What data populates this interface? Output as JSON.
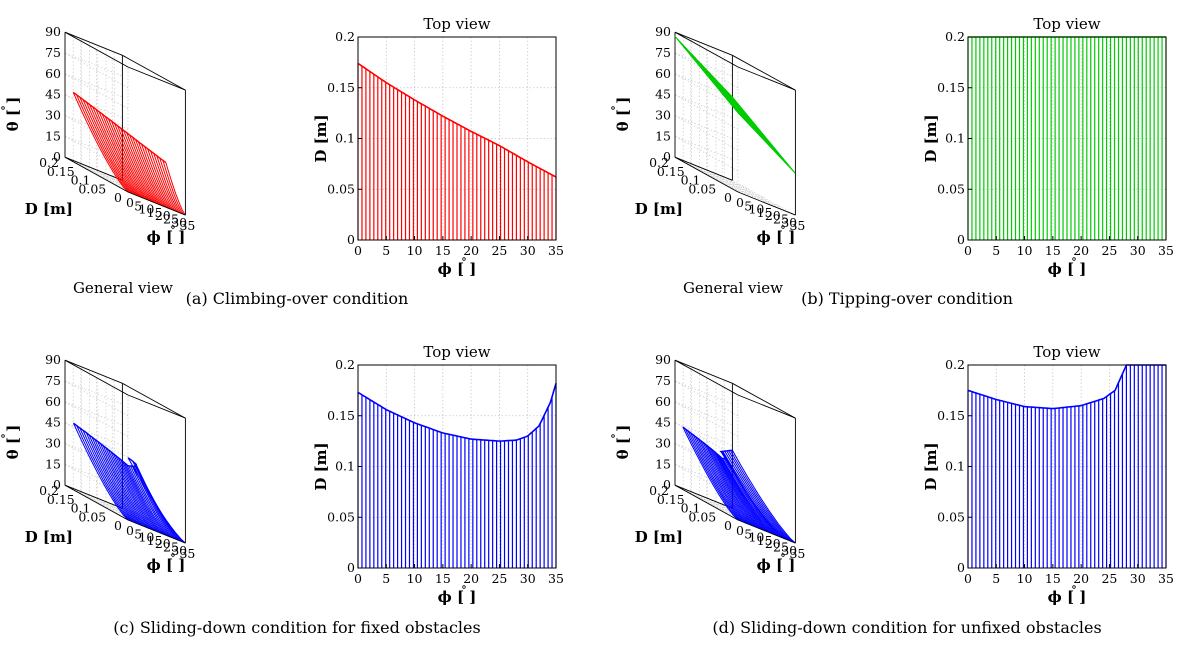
{
  "panels": [
    {
      "id": "a",
      "caption": "(a)  Climbing-over condition",
      "color": "#ff0000",
      "general_title": "General view",
      "top_title": "Top view"
    },
    {
      "id": "b",
      "caption": "(b)  Tipping-over condition",
      "color": "#00cc00",
      "general_title": "General view",
      "top_title": "Top view"
    },
    {
      "id": "c",
      "caption": "(c)  Sliding-down condition for fixed obstacles",
      "color": "#0000ff",
      "general_title": "General view",
      "top_title": "Top view"
    },
    {
      "id": "d",
      "caption": "(d)  Sliding-down condition for unfixed obstacles",
      "color": "#0000ff",
      "general_title": "General view",
      "top_title": "Top view"
    }
  ],
  "axes_text": {
    "phi_label": "ϕ [ ]",
    "phi_deg": "∘",
    "D_label": "D [m]",
    "theta_label": "θ [ ]",
    "theta_deg": "∘"
  },
  "chart_data": [
    {
      "type": "line",
      "panel": "a",
      "view": "top",
      "title": "Top view",
      "xlabel": "ϕ [ ]",
      "ylabel": "D [m]",
      "xlim": [
        0,
        35
      ],
      "ylim": [
        0,
        0.2
      ],
      "xticks": [
        0,
        5,
        10,
        15,
        20,
        25,
        30,
        35
      ],
      "yticks": [
        0,
        0.05,
        0.1,
        0.15,
        0.2
      ],
      "ytick_labels": [
        "0",
        "0.05",
        "0.1",
        "0.15",
        "0.2"
      ],
      "fill_style": "vertical-lines",
      "x": [
        0,
        5,
        10,
        15,
        20,
        25,
        30,
        35
      ],
      "y": [
        0.174,
        0.155,
        0.138,
        0.122,
        0.107,
        0.093,
        0.077,
        0.062
      ]
    },
    {
      "type": "line",
      "panel": "b",
      "view": "top",
      "title": "Top view",
      "xlabel": "ϕ [ ]",
      "ylabel": "D [m]",
      "xlim": [
        0,
        35
      ],
      "ylim": [
        0,
        0.2
      ],
      "xticks": [
        0,
        5,
        10,
        15,
        20,
        25,
        30,
        35
      ],
      "yticks": [
        0,
        0.05,
        0.1,
        0.15,
        0.2
      ],
      "ytick_labels": [
        "0",
        "0.05",
        "0.1",
        "0.15",
        "0.2"
      ],
      "fill_style": "vertical-lines",
      "x": [
        0,
        5,
        10,
        15,
        20,
        25,
        30,
        35
      ],
      "y": [
        0.2,
        0.2,
        0.2,
        0.2,
        0.2,
        0.2,
        0.2,
        0.2
      ]
    },
    {
      "type": "line",
      "panel": "c",
      "view": "top",
      "title": "Top view",
      "xlabel": "ϕ [ ]",
      "ylabel": "D [m]",
      "xlim": [
        0,
        35
      ],
      "ylim": [
        0,
        0.2
      ],
      "xticks": [
        0,
        5,
        10,
        15,
        20,
        25,
        30,
        35
      ],
      "yticks": [
        0,
        0.05,
        0.1,
        0.15,
        0.2
      ],
      "ytick_labels": [
        "0",
        "0.05",
        "0.1",
        "0.15",
        "0.2"
      ],
      "fill_style": "vertical-lines",
      "x": [
        0,
        5,
        10,
        15,
        20,
        25,
        28,
        30,
        32,
        34,
        35
      ],
      "y": [
        0.173,
        0.156,
        0.143,
        0.133,
        0.127,
        0.125,
        0.126,
        0.13,
        0.14,
        0.163,
        0.182
      ]
    },
    {
      "type": "line",
      "panel": "d",
      "view": "top",
      "title": "Top view",
      "xlabel": "ϕ [ ]",
      "ylabel": "D [m]",
      "xlim": [
        0,
        35
      ],
      "ylim": [
        0,
        0.2
      ],
      "xticks": [
        0,
        5,
        10,
        15,
        20,
        25,
        30,
        35
      ],
      "yticks": [
        0,
        0.05,
        0.1,
        0.15,
        0.2
      ],
      "ytick_labels": [
        "0",
        "0.05",
        "0.1",
        "0.15",
        "0.2"
      ],
      "fill_style": "vertical-lines",
      "x": [
        0,
        5,
        10,
        15,
        20,
        24,
        26,
        28,
        30,
        35
      ],
      "y": [
        0.175,
        0.166,
        0.159,
        0.157,
        0.16,
        0.167,
        0.175,
        0.2,
        0.2,
        0.2
      ]
    },
    {
      "type": "line",
      "panel": "a",
      "view": "general-3d",
      "title": "General view",
      "xlabel": "ϕ [ ]",
      "ylabel": "D [m]",
      "zlabel": "θ [ ]",
      "xlim": [
        0,
        35
      ],
      "ylim": [
        0,
        0.2
      ],
      "zlim": [
        0,
        90
      ],
      "xticks": [
        0,
        5,
        10,
        15,
        20,
        25,
        30,
        35
      ],
      "yticks": [
        0,
        0.05,
        0.1,
        0.15,
        0.2
      ],
      "ytick_labels": [
        "0",
        "0.05",
        "0.1",
        "0.15",
        "0.2"
      ],
      "zticks": [
        0,
        15,
        30,
        45,
        60,
        75,
        90
      ],
      "edge_phi": [
        0,
        35
      ],
      "edge_D": [
        0.174,
        0.062
      ],
      "edge_theta": [
        50,
        30
      ]
    },
    {
      "type": "line",
      "panel": "b",
      "view": "general-3d",
      "title": "General view",
      "xlabel": "ϕ [ ]",
      "ylabel": "D [m]",
      "zlabel": "θ [ ]",
      "xlim": [
        0,
        35
      ],
      "ylim": [
        0,
        0.2
      ],
      "zlim": [
        0,
        90
      ],
      "xticks": [
        0,
        5,
        10,
        15,
        20,
        25,
        30,
        35
      ],
      "yticks": [
        0,
        0.05,
        0.1,
        0.15,
        0.2
      ],
      "ytick_labels": [
        "0",
        "0.05",
        "0.1",
        "0.15",
        "0.2"
      ],
      "zticks": [
        0,
        15,
        30,
        45,
        60,
        75,
        90
      ],
      "plane_theta_at_phi0": [
        87,
        57
      ],
      "plane_theta_at_phi35": [
        60,
        30
      ]
    },
    {
      "type": "line",
      "panel": "c",
      "view": "general-3d",
      "title": "General view",
      "xlabel": "ϕ [ ]",
      "ylabel": "D [m]",
      "zlabel": "θ [ ]",
      "xlim": [
        0,
        35
      ],
      "ylim": [
        0,
        0.2
      ],
      "zlim": [
        0,
        90
      ],
      "xticks": [
        0,
        5,
        10,
        15,
        20,
        25,
        30,
        35
      ],
      "yticks": [
        0,
        0.05,
        0.1,
        0.15,
        0.2
      ],
      "ytick_labels": [
        "0",
        "0.05",
        "0.1",
        "0.15",
        "0.2"
      ],
      "zticks": [
        0,
        15,
        30,
        45,
        60,
        75,
        90
      ]
    },
    {
      "type": "line",
      "panel": "d",
      "view": "general-3d",
      "title": "General view",
      "xlabel": "ϕ [ ]",
      "ylabel": "D [m]",
      "zlabel": "θ [ ]",
      "xlim": [
        0,
        35
      ],
      "ylim": [
        0,
        0.2
      ],
      "zlim": [
        0,
        90
      ],
      "xticks": [
        0,
        5,
        10,
        15,
        20,
        25,
        30,
        35
      ],
      "yticks": [
        0,
        0.05,
        0.1,
        0.15,
        0.2
      ],
      "ytick_labels": [
        "0",
        "0.05",
        "0.1",
        "0.15",
        "0.2"
      ],
      "zticks": [
        0,
        15,
        30,
        45,
        60,
        75,
        90
      ]
    }
  ]
}
